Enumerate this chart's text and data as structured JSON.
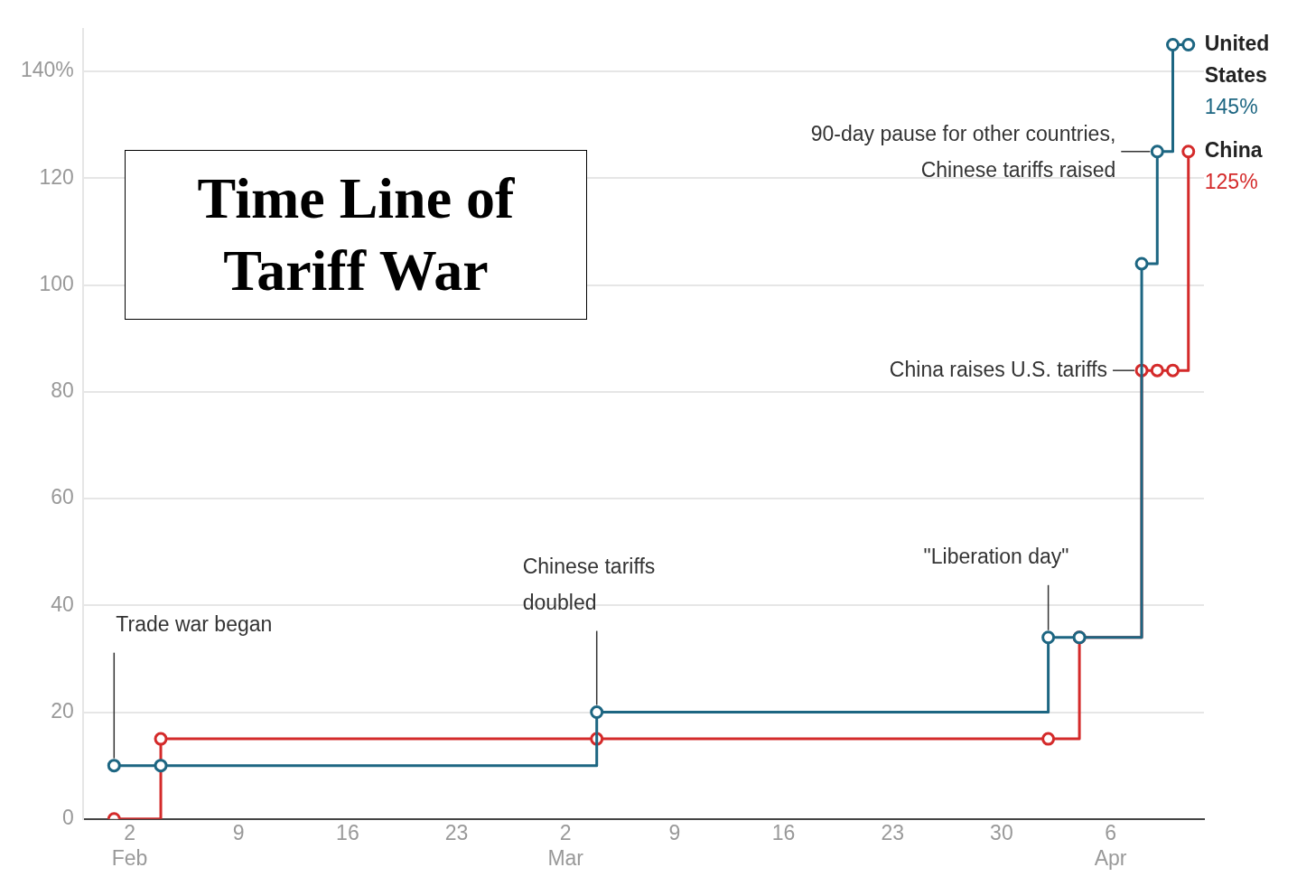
{
  "chart_data": {
    "type": "step",
    "title": "Time Line of Tariff War",
    "x": [
      "--02-01",
      "--02-04",
      "--03-04",
      "--04-02",
      "--04-04",
      "--04-08",
      "--04-09",
      "--04-10",
      "--04-11"
    ],
    "series": [
      {
        "name": "United States",
        "color": "#1d6682",
        "values": [
          10,
          10,
          20,
          34,
          34,
          104,
          125,
          145,
          145
        ],
        "value_labels": [
          null,
          null,
          null,
          null,
          null,
          null,
          null,
          null,
          "145%"
        ]
      },
      {
        "name": "China",
        "color": "#d42a2a",
        "values": [
          0,
          15,
          15,
          15,
          34,
          84,
          84,
          84,
          125
        ],
        "value_labels": [
          null,
          null,
          null,
          null,
          null,
          null,
          null,
          null,
          "125%"
        ]
      }
    ],
    "xlim": [
      "--01-30",
      "--04-12"
    ],
    "xticks": [
      {
        "value": "--02-02",
        "label": "2\nFeb"
      },
      {
        "value": "--02-09",
        "label": "9"
      },
      {
        "value": "--02-16",
        "label": "16"
      },
      {
        "value": "--02-23",
        "label": "23"
      },
      {
        "value": "--03-02",
        "label": "2\nMar"
      },
      {
        "value": "--03-09",
        "label": "9"
      },
      {
        "value": "--03-16",
        "label": "16"
      },
      {
        "value": "--03-23",
        "label": "23"
      },
      {
        "value": "--03-30",
        "label": "30"
      },
      {
        "value": "--04-06",
        "label": "6\nApr"
      }
    ],
    "ylim": [
      0,
      148
    ],
    "yticks": [
      0,
      20,
      40,
      60,
      80,
      100,
      120,
      {
        "value": 140,
        "label": "140%"
      }
    ],
    "grid": "y",
    "marker": "circle",
    "legend": false,
    "annotations": [
      {
        "text": "Trade war began",
        "x": "--02-01",
        "y": 10
      },
      {
        "text": "Chinese tariffs doubled",
        "x": "--03-04",
        "y": 20
      },
      {
        "text": "\"Liberation day\"",
        "x": "--04-02",
        "y": 34
      },
      {
        "text": "China raises U.S. tariffs",
        "x": "--04-08",
        "y": 84
      },
      {
        "text": "90-day pause for other countries, Chinese tariffs raised",
        "x": "--04-09",
        "y": 125
      }
    ]
  }
}
